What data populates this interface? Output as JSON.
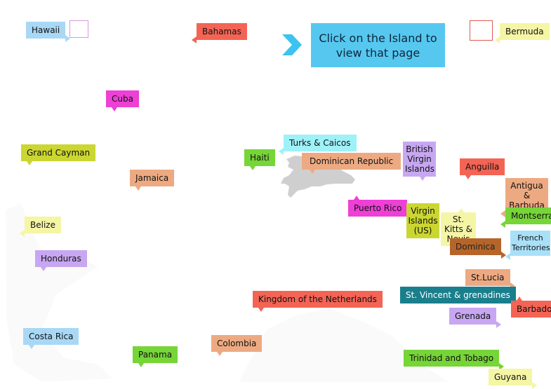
{
  "banner": {
    "text": "Click on the Island to view that page",
    "color": "#56c8f0",
    "arrow_color": "#3cc3ef"
  },
  "islands": [
    {
      "id": "hawaii",
      "label": "Hawaii",
      "color": "#a8d8f5"
    },
    {
      "id": "bahamas",
      "label": "Bahamas",
      "color": "#f36455"
    },
    {
      "id": "bermuda",
      "label": "Bermuda",
      "color": "#f5f5a6"
    },
    {
      "id": "cuba",
      "label": "Cuba",
      "color": "#ee3fd6"
    },
    {
      "id": "grand-cayman",
      "label": "Grand Cayman",
      "color": "#cbd631"
    },
    {
      "id": "turks-caicos",
      "label": "Turks & Caicos",
      "color": "#9ff1f8"
    },
    {
      "id": "haiti",
      "label": "Haiti",
      "color": "#76d537"
    },
    {
      "id": "dominican-republic",
      "label": "Dominican Republic",
      "color": "#edaa82"
    },
    {
      "id": "jamaica",
      "label": "Jamaica",
      "color": "#edaa82"
    },
    {
      "id": "british-virgin-islands",
      "label": "British Virgin Islands",
      "color": "#c7a7f1"
    },
    {
      "id": "anguilla",
      "label": "Anguilla",
      "color": "#f36455"
    },
    {
      "id": "antigua-barbuda",
      "label": "Antigua & Barbuda",
      "color": "#edaa82"
    },
    {
      "id": "puerto-rico",
      "label": "Puerto Rico",
      "color": "#ee3fd6"
    },
    {
      "id": "virgin-islands-us",
      "label": "Virgin Islands (US)",
      "color": "#cbd631"
    },
    {
      "id": "st-kitts-nevis",
      "label": "St. Kitts & Nevis",
      "color": "#f5f5a6"
    },
    {
      "id": "montserrat",
      "label": "Montserrat",
      "color": "#76d537"
    },
    {
      "id": "belize",
      "label": "Belize",
      "color": "#f5f5a6"
    },
    {
      "id": "dominica",
      "label": "Dominica",
      "color": "#b5652a"
    },
    {
      "id": "french-territories",
      "label": "French Territories",
      "color": "#a8e0f8"
    },
    {
      "id": "honduras",
      "label": "Honduras",
      "color": "#c7a7f1"
    },
    {
      "id": "st-lucia",
      "label": "St.Lucia",
      "color": "#edaa82"
    },
    {
      "id": "kingdom-netherlands",
      "label": "Kingdom of  the Netherlands",
      "color": "#f36455"
    },
    {
      "id": "st-vincent-grenadines",
      "label": "St. Vincent & grenadines",
      "color": "#1a7f8c"
    },
    {
      "id": "barbados",
      "label": "Barbados",
      "color": "#f36455"
    },
    {
      "id": "grenada",
      "label": "Grenada",
      "color": "#c7a7f1"
    },
    {
      "id": "costa-rica",
      "label": "Costa Rica",
      "color": "#a8d8f5"
    },
    {
      "id": "colombia",
      "label": "Colombia",
      "color": "#edaa82"
    },
    {
      "id": "panama",
      "label": "Panama",
      "color": "#76d537"
    },
    {
      "id": "trinidad-tobago",
      "label": "Trinidad and Tobago",
      "color": "#76d537"
    },
    {
      "id": "guyana",
      "label": "Guyana",
      "color": "#f5f5a6"
    }
  ],
  "hispaniola_color": "#cfcfcf",
  "frame_colors": {
    "hawaii": "#d59ad8",
    "bermuda": "#e05a4c"
  }
}
